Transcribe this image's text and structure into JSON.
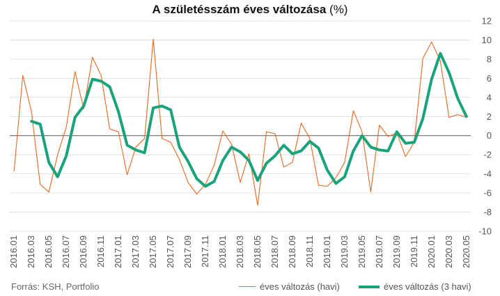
{
  "title": {
    "main": "A születésszám éves változása",
    "unit": "(%)"
  },
  "source": "Forrás: KSH, Portfolio",
  "colors": {
    "monthly": "#e8681c",
    "quarterly": "#1aa37a",
    "zero": "#555555",
    "grid": "#d9d9d9"
  },
  "chart_data": {
    "type": "line",
    "title": "A születésszám éves változása (%)",
    "xlabel": "",
    "ylabel": "",
    "ylim": [
      -10,
      12
    ],
    "ytick_step": 2,
    "grid": true,
    "legend": "bottom-right",
    "y_axis_side": "right",
    "x": [
      "2016.01",
      "2016.02",
      "2016.03",
      "2016.04",
      "2016.05",
      "2016.06",
      "2016.07",
      "2016.08",
      "2016.09",
      "2016.10",
      "2016.11",
      "2016.12",
      "2017.01",
      "2017.02",
      "2017.03",
      "2017.04",
      "2017.05",
      "2017.06",
      "2017.07",
      "2017.08",
      "2017.09",
      "2017.10",
      "2017.11",
      "2017.12",
      "2018.01",
      "2018.02",
      "2018.03",
      "2018.04",
      "2018.05",
      "2018.06",
      "2018.07",
      "2018.08",
      "2018.09",
      "2018.10",
      "2018.11",
      "2018.12",
      "2019.01",
      "2019.02",
      "2019.03",
      "2019.04",
      "2019.05",
      "2019.06",
      "2019.07",
      "2019.08",
      "2019.09",
      "2019.10",
      "2019.11",
      "2019.12",
      "2020.01",
      "2020.02",
      "2020.03",
      "2020.04",
      "2020.05"
    ],
    "xtick_labels": [
      "2016.01",
      "2016.03",
      "2016.05",
      "2016.07",
      "2016.09",
      "2016.11",
      "2017.01",
      "2017.03",
      "2017.05",
      "2017.07",
      "2017.09",
      "2017.11",
      "2018.01",
      "2018.03",
      "2018.05",
      "2018.07",
      "2018.09",
      "2018.11",
      "2019.01",
      "2019.03",
      "2019.05",
      "2019.07",
      "2019.09",
      "2019.11",
      "2020.01",
      "2020.03",
      "2020.05"
    ],
    "series": [
      {
        "name": "éves változás (havi)",
        "color": "#e8681c",
        "style": "thin",
        "values": [
          -3.7,
          6.3,
          2.5,
          -5.1,
          -5.9,
          -2.0,
          0.9,
          6.7,
          2.8,
          8.2,
          6.3,
          0.7,
          0.4,
          -4.1,
          -1.2,
          -0.3,
          10.1,
          -0.3,
          -0.7,
          -2.5,
          -4.9,
          -6.1,
          -5.1,
          -3.1,
          0.5,
          -0.9,
          -4.9,
          -1.9,
          -7.3,
          0.4,
          0.2,
          -3.3,
          -2.8,
          1.3,
          -0.3,
          -5.2,
          -5.3,
          -4.4,
          -2.8,
          2.6,
          0.4,
          -5.9,
          1.1,
          -0.1,
          0.3,
          -2.2,
          -0.7,
          8.1,
          9.8,
          7.8,
          1.9,
          2.2,
          1.9
        ]
      },
      {
        "name": "éves változás (3 havi)",
        "color": "#1aa37a",
        "style": "thick",
        "values": [
          null,
          null,
          1.5,
          1.2,
          -2.8,
          -4.3,
          -2.1,
          1.9,
          3.1,
          5.9,
          5.7,
          5.1,
          2.5,
          -1.0,
          -1.5,
          -1.8,
          2.9,
          3.1,
          2.7,
          -1.2,
          -2.7,
          -4.5,
          -5.3,
          -4.8,
          -2.6,
          -1.2,
          -1.7,
          -2.6,
          -4.7,
          -2.9,
          -2.1,
          -1.0,
          -1.9,
          -1.6,
          -0.6,
          -1.3,
          -3.6,
          -5.0,
          -4.3,
          -1.6,
          0.0,
          -1.2,
          -1.5,
          -1.6,
          0.4,
          -0.8,
          -0.7,
          1.8,
          5.9,
          8.6,
          6.6,
          3.9,
          2.0
        ]
      }
    ]
  }
}
